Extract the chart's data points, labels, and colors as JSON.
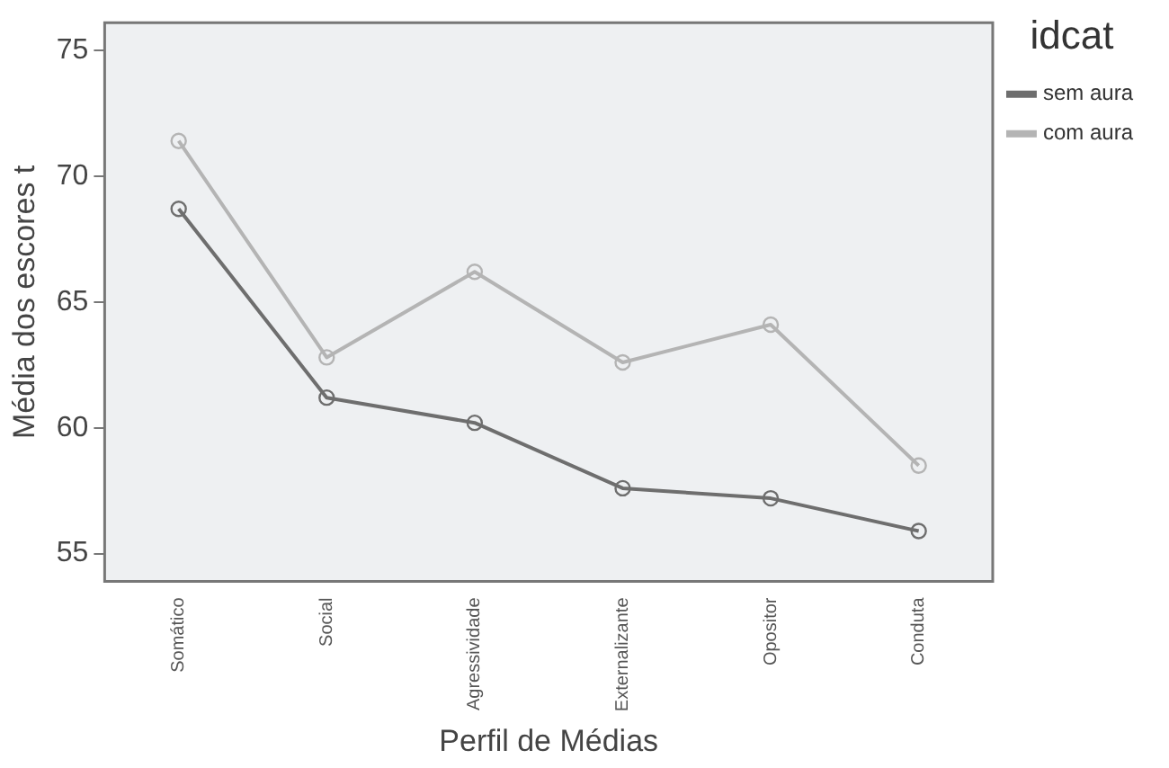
{
  "chart_data": {
    "type": "line",
    "xlabel": "Perfil de Médias",
    "ylabel": "Média dos escores t",
    "legend_title": "idcat",
    "legend": "right",
    "grid": false,
    "marker": "circle",
    "line_style": "solid",
    "categories": [
      "Somático",
      "Social",
      "Agressividade",
      "Externalizante",
      "Opositor",
      "Conduta"
    ],
    "ylim": [
      53.9,
      76.1
    ],
    "yticks": [
      55,
      60,
      65,
      70,
      75
    ],
    "series": [
      {
        "name": "sem aura",
        "color": "#6e6e6e",
        "values": [
          68.7,
          61.2,
          60.2,
          57.6,
          57.2,
          55.9
        ]
      },
      {
        "name": "com aura",
        "color": "#b4b4b4",
        "values": [
          71.4,
          62.8,
          66.2,
          62.6,
          64.1,
          58.5
        ]
      }
    ]
  }
}
